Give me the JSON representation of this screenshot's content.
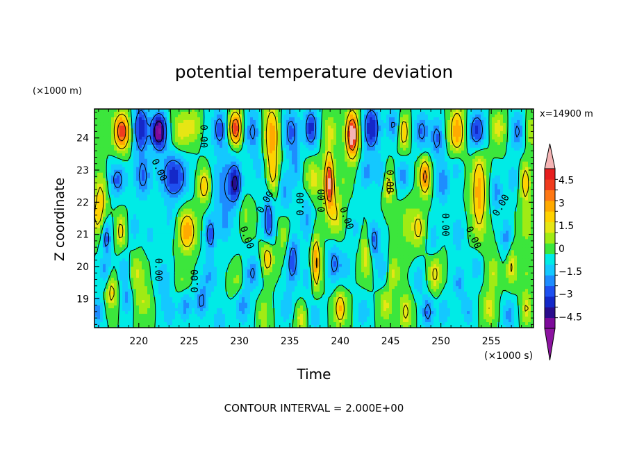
{
  "chart_data": {
    "type": "heatmap",
    "title": "potential temperature deviation",
    "xlabel": "Time",
    "ylabel": "Z coordinate",
    "x_unit_label": "(×1000 s)",
    "y_unit_label": "(×1000 m)",
    "annotation_right": "x=14900 m",
    "footer": "CONTOUR INTERVAL = 2.000E+00",
    "xlim": [
      215.6,
      259.2
    ],
    "ylim": [
      18.1,
      24.9
    ],
    "x_ticks": [
      220,
      225,
      230,
      235,
      240,
      245,
      250,
      255
    ],
    "y_ticks": [
      19,
      20,
      21,
      22,
      23,
      24
    ],
    "x_tick_labels": [
      "220",
      "225",
      "230",
      "235",
      "240",
      "245",
      "250",
      "255"
    ],
    "y_tick_labels": [
      "19",
      "20",
      "21",
      "22",
      "23",
      "24"
    ],
    "color_range": [
      -5.25,
      5.25
    ],
    "colorbar": {
      "levels": [
        -5.25,
        -4.5,
        -3.75,
        -3,
        -2.25,
        -1.5,
        -0.75,
        0,
        0.75,
        1.5,
        2.25,
        3,
        3.75,
        4.5,
        5.25
      ],
      "tick_values": [
        4.5,
        3,
        1.5,
        0,
        -1.5,
        -3,
        -4.5
      ],
      "tick_labels": [
        "4.5",
        "3",
        "1.5",
        "0",
        "−1.5",
        "−3",
        "−4.5"
      ],
      "colors": [
        "#7d0a9a",
        "#2a0c8c",
        "#1428c8",
        "#1e50f0",
        "#1e8cff",
        "#14c8ff",
        "#00ebe6",
        "#3ce63c",
        "#a0eb14",
        "#e6e614",
        "#ffd200",
        "#ffaa00",
        "#ff7814",
        "#f03c1e",
        "#e61e1e"
      ],
      "under_color": "#8c14a0",
      "over_color": "#f5b4b4"
    },
    "contour_labels": [
      {
        "text": "0.00",
        "x": 226.4,
        "y": 24.05,
        "angle": 90
      },
      {
        "text": "0.00",
        "x": 222.0,
        "y": 23.0,
        "angle": 65
      },
      {
        "text": "0.00",
        "x": 221.9,
        "y": 19.9,
        "angle": 90
      },
      {
        "text": "0.00",
        "x": 225.6,
        "y": 19.55,
        "angle": -90
      },
      {
        "text": "0.00",
        "x": 230.7,
        "y": 20.9,
        "angle": 70
      },
      {
        "text": "0.00",
        "x": 232.6,
        "y": 22.0,
        "angle": -60
      },
      {
        "text": "0.00",
        "x": 236.1,
        "y": 21.95,
        "angle": -90
      },
      {
        "text": "0.00",
        "x": 238.2,
        "y": 22.05,
        "angle": -90
      },
      {
        "text": "0.00",
        "x": 240.6,
        "y": 21.5,
        "angle": 70
      },
      {
        "text": "0.00",
        "x": 244.9,
        "y": 22.65,
        "angle": 90
      },
      {
        "text": "0.00",
        "x": 250.4,
        "y": 21.3,
        "angle": 90
      },
      {
        "text": "0.00",
        "x": 253.2,
        "y": 20.9,
        "angle": 65
      },
      {
        "text": "0.00",
        "x": 256.0,
        "y": 21.9,
        "angle": -60
      }
    ],
    "features": [
      {
        "t": 218.3,
        "z": 24.2,
        "amp": 5.4,
        "sx": 0.75,
        "sz": 0.55
      },
      {
        "t": 220.2,
        "z": 24.3,
        "amp": -3.8,
        "sx": 0.7,
        "sz": 0.7
      },
      {
        "t": 222.0,
        "z": 24.2,
        "amp": -5.7,
        "sx": 0.75,
        "sz": 0.55
      },
      {
        "t": 224.2,
        "z": 24.2,
        "amp": 1.8,
        "sx": 0.9,
        "sz": 0.6
      },
      {
        "t": 225.5,
        "z": 24.4,
        "amp": 1.6,
        "sx": 0.8,
        "sz": 0.5
      },
      {
        "t": 226.4,
        "z": 24.3,
        "amp": -0.4,
        "sx": 0.6,
        "sz": 0.6
      },
      {
        "t": 228.0,
        "z": 24.3,
        "amp": -2.5,
        "sx": 0.7,
        "sz": 0.6
      },
      {
        "t": 229.6,
        "z": 24.3,
        "amp": 5.8,
        "sx": 0.6,
        "sz": 0.5
      },
      {
        "t": 231.3,
        "z": 24.2,
        "amp": -2.2,
        "sx": 0.8,
        "sz": 0.7
      },
      {
        "t": 233.2,
        "z": 24.1,
        "amp": 3.8,
        "sx": 0.7,
        "sz": 0.9
      },
      {
        "t": 235.1,
        "z": 24.2,
        "amp": -2.5,
        "sx": 0.8,
        "sz": 0.7
      },
      {
        "t": 237.1,
        "z": 24.3,
        "amp": -3.5,
        "sx": 0.65,
        "sz": 0.6
      },
      {
        "t": 239.0,
        "z": 24.2,
        "amp": 1.6,
        "sx": 0.7,
        "sz": 0.5
      },
      {
        "t": 241.2,
        "z": 24.1,
        "amp": 6.6,
        "sx": 0.6,
        "sz": 0.7
      },
      {
        "t": 243.1,
        "z": 24.3,
        "amp": -3.8,
        "sx": 0.8,
        "sz": 0.7
      },
      {
        "t": 245.3,
        "z": 24.4,
        "amp": -2.2,
        "sx": 0.7,
        "sz": 0.5
      },
      {
        "t": 246.3,
        "z": 24.2,
        "amp": 3.5,
        "sx": 0.5,
        "sz": 0.5
      },
      {
        "t": 248.1,
        "z": 24.2,
        "amp": -2.4,
        "sx": 0.7,
        "sz": 0.6
      },
      {
        "t": 249.6,
        "z": 24.0,
        "amp": -2.5,
        "sx": 0.6,
        "sz": 0.6
      },
      {
        "t": 251.6,
        "z": 24.2,
        "amp": 3.9,
        "sx": 0.7,
        "sz": 0.7
      },
      {
        "t": 253.6,
        "z": 24.2,
        "amp": -3.6,
        "sx": 0.8,
        "sz": 0.6
      },
      {
        "t": 255.7,
        "z": 24.3,
        "amp": 2.0,
        "sx": 0.7,
        "sz": 0.5
      },
      {
        "t": 257.6,
        "z": 24.2,
        "amp": -2.2,
        "sx": 0.7,
        "sz": 0.6
      },
      {
        "t": 258.9,
        "z": 24.2,
        "amp": 1.6,
        "sx": 0.5,
        "sz": 0.5
      },
      {
        "t": 216.2,
        "z": 22.1,
        "amp": 2.5,
        "sx": 0.6,
        "sz": 0.8
      },
      {
        "t": 217.9,
        "z": 22.7,
        "amp": -2.6,
        "sx": 0.8,
        "sz": 0.5
      },
      {
        "t": 220.4,
        "z": 22.8,
        "amp": -2.4,
        "sx": 0.8,
        "sz": 0.7
      },
      {
        "t": 223.5,
        "z": 22.8,
        "amp": -3.5,
        "sx": 1.3,
        "sz": 0.7
      },
      {
        "t": 226.5,
        "z": 22.5,
        "amp": 3.1,
        "sx": 0.6,
        "sz": 0.5
      },
      {
        "t": 228.7,
        "z": 22.5,
        "amp": -2.0,
        "sx": 1.3,
        "sz": 1.2
      },
      {
        "t": 229.6,
        "z": 22.6,
        "amp": -3.5,
        "sx": 0.5,
        "sz": 0.5
      },
      {
        "t": 232.0,
        "z": 23.0,
        "amp": -1.0,
        "sx": 0.8,
        "sz": 0.6
      },
      {
        "t": 233.3,
        "z": 22.8,
        "amp": 2.3,
        "sx": 0.6,
        "sz": 0.7
      },
      {
        "t": 234.5,
        "z": 22.3,
        "amp": -1.8,
        "sx": 0.7,
        "sz": 0.7
      },
      {
        "t": 235.6,
        "z": 23.1,
        "amp": -1.6,
        "sx": 0.5,
        "sz": 0.6
      },
      {
        "t": 237.3,
        "z": 22.7,
        "amp": 2.0,
        "sx": 0.7,
        "sz": 0.6
      },
      {
        "t": 238.9,
        "z": 22.6,
        "amp": 5.8,
        "sx": 0.45,
        "sz": 0.9
      },
      {
        "t": 240.4,
        "z": 22.7,
        "amp": 0.8,
        "sx": 0.5,
        "sz": 0.5
      },
      {
        "t": 242.6,
        "z": 22.9,
        "amp": -1.8,
        "sx": 0.7,
        "sz": 0.5
      },
      {
        "t": 244.0,
        "z": 22.9,
        "amp": -1.5,
        "sx": 0.5,
        "sz": 0.5
      },
      {
        "t": 244.8,
        "z": 22.5,
        "amp": 2.6,
        "sx": 0.45,
        "sz": 0.5
      },
      {
        "t": 246.3,
        "z": 22.8,
        "amp": -2.0,
        "sx": 0.6,
        "sz": 0.5
      },
      {
        "t": 248.4,
        "z": 22.8,
        "amp": 4.6,
        "sx": 0.5,
        "sz": 0.55
      },
      {
        "t": 250.2,
        "z": 22.6,
        "amp": -2.0,
        "sx": 0.7,
        "sz": 0.7
      },
      {
        "t": 251.6,
        "z": 23.1,
        "amp": -1.4,
        "sx": 0.5,
        "sz": 0.5
      },
      {
        "t": 253.8,
        "z": 22.3,
        "amp": 3.6,
        "sx": 0.7,
        "sz": 1.3
      },
      {
        "t": 255.5,
        "z": 22.3,
        "amp": -1.9,
        "sx": 0.6,
        "sz": 0.6
      },
      {
        "t": 257.1,
        "z": 22.7,
        "amp": -1.5,
        "sx": 0.5,
        "sz": 0.5
      },
      {
        "t": 258.4,
        "z": 22.6,
        "amp": 3.1,
        "sx": 0.45,
        "sz": 0.6
      },
      {
        "t": 215.8,
        "z": 21.5,
        "amp": 1.6,
        "sx": 0.5,
        "sz": 0.5
      },
      {
        "t": 216.8,
        "z": 20.9,
        "amp": -2.6,
        "sx": 0.45,
        "sz": 0.5
      },
      {
        "t": 218.2,
        "z": 21.1,
        "amp": 2.6,
        "sx": 0.45,
        "sz": 0.5
      },
      {
        "t": 219.6,
        "z": 21.2,
        "amp": -1.2,
        "sx": 0.5,
        "sz": 0.6
      },
      {
        "t": 221.1,
        "z": 21.0,
        "amp": -1.0,
        "sx": 0.6,
        "sz": 0.5
      },
      {
        "t": 223.0,
        "z": 21.4,
        "amp": -0.8,
        "sx": 0.7,
        "sz": 0.6
      },
      {
        "t": 224.8,
        "z": 21.1,
        "amp": 3.9,
        "sx": 0.8,
        "sz": 0.6
      },
      {
        "t": 227.1,
        "z": 21.0,
        "amp": -2.9,
        "sx": 0.5,
        "sz": 0.5
      },
      {
        "t": 228.5,
        "z": 21.2,
        "amp": -1.0,
        "sx": 0.6,
        "sz": 0.6
      },
      {
        "t": 230.6,
        "z": 21.6,
        "amp": 1.1,
        "sx": 0.6,
        "sz": 0.5
      },
      {
        "t": 232.9,
        "z": 21.4,
        "amp": -3.2,
        "sx": 0.5,
        "sz": 0.9
      },
      {
        "t": 234.5,
        "z": 20.8,
        "amp": 1.6,
        "sx": 0.6,
        "sz": 0.8
      },
      {
        "t": 236.7,
        "z": 21.5,
        "amp": -1.7,
        "sx": 0.6,
        "sz": 0.8
      },
      {
        "t": 239.6,
        "z": 21.6,
        "amp": 2.0,
        "sx": 0.6,
        "sz": 0.7
      },
      {
        "t": 241.5,
        "z": 21.2,
        "amp": -1.0,
        "sx": 0.6,
        "sz": 0.6
      },
      {
        "t": 243.3,
        "z": 20.8,
        "amp": -2.8,
        "sx": 0.6,
        "sz": 0.6
      },
      {
        "t": 246.8,
        "z": 21.3,
        "amp": 1.2,
        "sx": 0.8,
        "sz": 0.8
      },
      {
        "t": 247.8,
        "z": 21.2,
        "amp": 2.5,
        "sx": 0.5,
        "sz": 0.5
      },
      {
        "t": 249.3,
        "z": 20.8,
        "amp": -1.5,
        "sx": 0.5,
        "sz": 0.6
      },
      {
        "t": 251.7,
        "z": 21.0,
        "amp": -1.5,
        "sx": 0.6,
        "sz": 0.6
      },
      {
        "t": 256.5,
        "z": 20.9,
        "amp": -2.0,
        "sx": 0.5,
        "sz": 0.6
      },
      {
        "t": 258.5,
        "z": 21.3,
        "amp": 1.4,
        "sx": 0.6,
        "sz": 0.6
      },
      {
        "t": 216.7,
        "z": 19.9,
        "amp": -1.8,
        "sx": 0.5,
        "sz": 0.5
      },
      {
        "t": 218.5,
        "z": 19.9,
        "amp": -1.6,
        "sx": 0.5,
        "sz": 0.5
      },
      {
        "t": 219.8,
        "z": 19.8,
        "amp": 1.6,
        "sx": 0.7,
        "sz": 0.6
      },
      {
        "t": 222.4,
        "z": 19.6,
        "amp": -1.5,
        "sx": 0.7,
        "sz": 0.6
      },
      {
        "t": 224.4,
        "z": 19.5,
        "amp": 1.0,
        "sx": 0.6,
        "sz": 0.5
      },
      {
        "t": 227.0,
        "z": 19.7,
        "amp": -1.6,
        "sx": 0.8,
        "sz": 0.6
      },
      {
        "t": 229.8,
        "z": 19.5,
        "amp": 1.2,
        "sx": 0.6,
        "sz": 0.5
      },
      {
        "t": 231.3,
        "z": 19.8,
        "amp": -2.2,
        "sx": 0.7,
        "sz": 0.5
      },
      {
        "t": 232.8,
        "z": 20.3,
        "amp": 3.8,
        "sx": 0.5,
        "sz": 0.5
      },
      {
        "t": 235.2,
        "z": 20.2,
        "amp": -3.0,
        "sx": 0.7,
        "sz": 0.8
      },
      {
        "t": 236.8,
        "z": 19.6,
        "amp": -1.2,
        "sx": 0.6,
        "sz": 0.5
      },
      {
        "t": 237.6,
        "z": 20.1,
        "amp": 4.4,
        "sx": 0.4,
        "sz": 0.8
      },
      {
        "t": 239.4,
        "z": 20.1,
        "amp": -2.5,
        "sx": 0.6,
        "sz": 0.6
      },
      {
        "t": 240.5,
        "z": 20.0,
        "amp": -1.5,
        "sx": 0.5,
        "sz": 0.5
      },
      {
        "t": 242.6,
        "z": 20.4,
        "amp": 2.4,
        "sx": 0.55,
        "sz": 0.7
      },
      {
        "t": 244.2,
        "z": 19.9,
        "amp": -1.5,
        "sx": 0.6,
        "sz": 0.5
      },
      {
        "t": 245.3,
        "z": 19.8,
        "amp": 1.8,
        "sx": 0.6,
        "sz": 0.5
      },
      {
        "t": 247.8,
        "z": 19.6,
        "amp": -1.4,
        "sx": 0.6,
        "sz": 0.5
      },
      {
        "t": 249.4,
        "z": 19.8,
        "amp": 2.4,
        "sx": 0.6,
        "sz": 0.6
      },
      {
        "t": 251.8,
        "z": 19.5,
        "amp": -1.8,
        "sx": 0.6,
        "sz": 0.5
      },
      {
        "t": 253.5,
        "z": 20.0,
        "amp": -1.5,
        "sx": 0.6,
        "sz": 0.5
      },
      {
        "t": 255.2,
        "z": 19.8,
        "amp": 1.6,
        "sx": 0.6,
        "sz": 0.5
      },
      {
        "t": 257.0,
        "z": 20.0,
        "amp": 2.2,
        "sx": 0.5,
        "sz": 0.6
      },
      {
        "t": 258.5,
        "z": 19.8,
        "amp": 0.8,
        "sx": 0.5,
        "sz": 0.5
      },
      {
        "t": 215.9,
        "z": 18.6,
        "amp": -2.0,
        "sx": 0.5,
        "sz": 0.5
      },
      {
        "t": 217.3,
        "z": 19.2,
        "amp": 2.6,
        "sx": 0.5,
        "sz": 0.5
      },
      {
        "t": 218.8,
        "z": 19.0,
        "amp": -1.8,
        "sx": 0.5,
        "sz": 0.5
      },
      {
        "t": 220.5,
        "z": 18.9,
        "amp": 1.5,
        "sx": 0.7,
        "sz": 0.5
      },
      {
        "t": 223.0,
        "z": 18.6,
        "amp": -1.5,
        "sx": 0.7,
        "sz": 0.5
      },
      {
        "t": 224.6,
        "z": 18.8,
        "amp": -2.0,
        "sx": 0.6,
        "sz": 0.5
      },
      {
        "t": 226.2,
        "z": 18.9,
        "amp": -2.2,
        "sx": 0.6,
        "sz": 0.5
      },
      {
        "t": 228.0,
        "z": 18.3,
        "amp": -1.5,
        "sx": 0.6,
        "sz": 0.5
      },
      {
        "t": 230.3,
        "z": 18.8,
        "amp": -2.0,
        "sx": 0.7,
        "sz": 0.6
      },
      {
        "t": 232.4,
        "z": 18.5,
        "amp": 1.5,
        "sx": 0.5,
        "sz": 0.5
      },
      {
        "t": 234.6,
        "z": 18.7,
        "amp": -1.5,
        "sx": 0.6,
        "sz": 0.5
      },
      {
        "t": 236.1,
        "z": 18.4,
        "amp": 2.0,
        "sx": 0.5,
        "sz": 0.4
      },
      {
        "t": 237.5,
        "z": 18.5,
        "amp": -1.5,
        "sx": 0.6,
        "sz": 0.5
      },
      {
        "t": 240.0,
        "z": 18.7,
        "amp": 3.4,
        "sx": 0.55,
        "sz": 0.5
      },
      {
        "t": 242.3,
        "z": 18.6,
        "amp": -1.5,
        "sx": 0.6,
        "sz": 0.5
      },
      {
        "t": 244.5,
        "z": 18.8,
        "amp": 1.8,
        "sx": 0.6,
        "sz": 0.5
      },
      {
        "t": 246.5,
        "z": 18.6,
        "amp": 2.4,
        "sx": 0.6,
        "sz": 0.5
      },
      {
        "t": 248.7,
        "z": 18.6,
        "amp": -2.5,
        "sx": 0.6,
        "sz": 0.5
      },
      {
        "t": 250.3,
        "z": 18.6,
        "amp": -1.5,
        "sx": 0.6,
        "sz": 0.5
      },
      {
        "t": 252.7,
        "z": 18.6,
        "amp": -1.6,
        "sx": 0.6,
        "sz": 0.5
      },
      {
        "t": 254.8,
        "z": 18.7,
        "amp": 2.0,
        "sx": 0.6,
        "sz": 0.5
      },
      {
        "t": 256.8,
        "z": 18.5,
        "amp": -2.0,
        "sx": 0.6,
        "sz": 0.5
      },
      {
        "t": 258.5,
        "z": 18.7,
        "amp": 2.2,
        "sx": 0.5,
        "sz": 0.5
      }
    ]
  }
}
